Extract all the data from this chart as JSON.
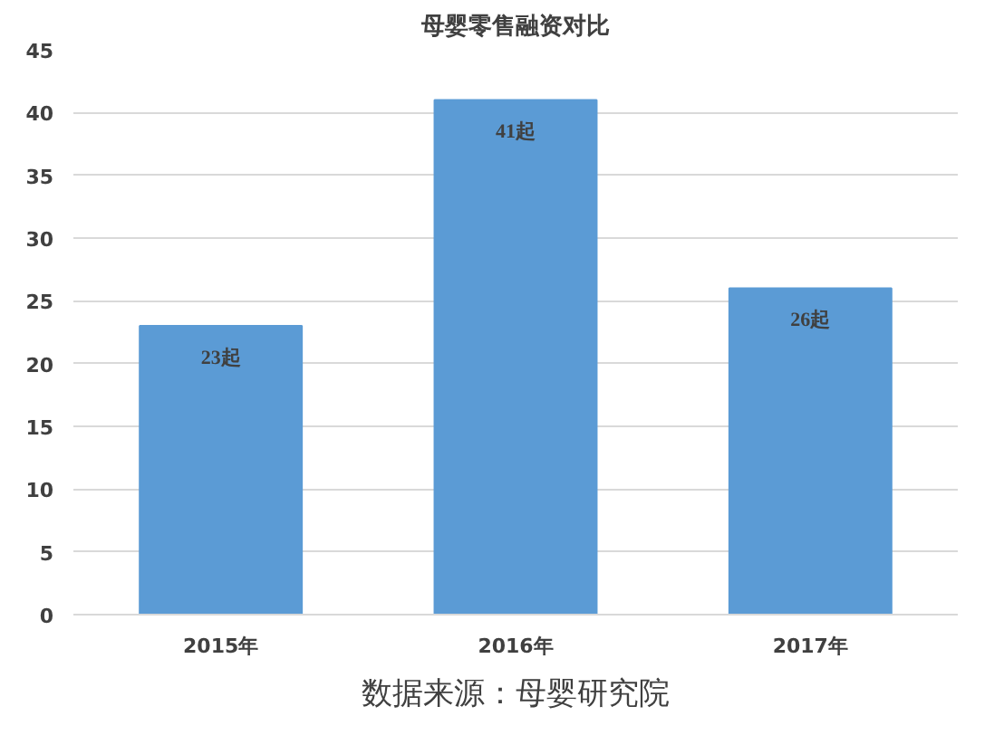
{
  "chart_data": {
    "type": "bar",
    "title": "母婴零售融资对比",
    "categories": [
      "2015年",
      "2016年",
      "2017年"
    ],
    "values": [
      23,
      41,
      26
    ],
    "value_labels": [
      "23起",
      "41起",
      "26起"
    ],
    "color": "#5b9bd5",
    "ylim": [
      0,
      45
    ],
    "yticks": [
      0,
      5,
      10,
      15,
      20,
      25,
      30,
      35,
      40,
      45
    ],
    "grid": "y",
    "annotations": [
      "数据来源：母婴研究院"
    ]
  }
}
